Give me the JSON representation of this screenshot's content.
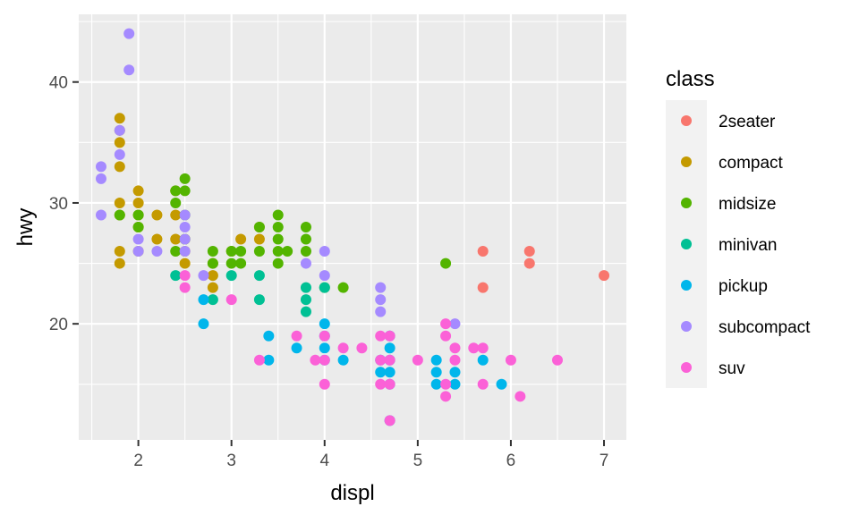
{
  "chart_data": {
    "type": "scatter",
    "xlabel": "displ",
    "ylabel": "hwy",
    "xlim": [
      1.36,
      7.24
    ],
    "ylim": [
      10.4,
      45.6
    ],
    "x_ticks": [
      2,
      3,
      4,
      5,
      6,
      7
    ],
    "y_ticks": [
      20,
      30,
      40
    ],
    "grid": true,
    "legend": {
      "title": "class",
      "position": "right"
    },
    "series": [
      {
        "name": "2seater",
        "color": "#F8766D",
        "points": [
          [
            5.7,
            26
          ],
          [
            5.7,
            23
          ],
          [
            6.2,
            26
          ],
          [
            6.2,
            25
          ],
          [
            7.0,
            24
          ]
        ]
      },
      {
        "name": "compact",
        "color": "#C49A00",
        "points": [
          [
            1.8,
            37
          ],
          [
            1.8,
            36
          ],
          [
            1.8,
            35
          ],
          [
            1.8,
            33
          ],
          [
            1.8,
            30
          ],
          [
            1.8,
            29
          ],
          [
            1.8,
            26
          ],
          [
            1.8,
            25
          ],
          [
            2.0,
            31
          ],
          [
            2.0,
            30
          ],
          [
            2.0,
            29
          ],
          [
            2.0,
            28
          ],
          [
            2.0,
            26
          ],
          [
            2.2,
            29
          ],
          [
            2.2,
            27
          ],
          [
            2.4,
            31
          ],
          [
            2.4,
            29
          ],
          [
            2.4,
            27
          ],
          [
            2.5,
            27
          ],
          [
            2.5,
            26
          ],
          [
            2.5,
            25
          ],
          [
            2.8,
            25
          ],
          [
            2.8,
            24
          ],
          [
            2.8,
            23
          ],
          [
            3.0,
            26
          ],
          [
            3.1,
            27
          ],
          [
            3.3,
            28
          ],
          [
            3.3,
            27
          ]
        ]
      },
      {
        "name": "midsize",
        "color": "#53B400",
        "points": [
          [
            1.8,
            29
          ],
          [
            2.0,
            29
          ],
          [
            2.0,
            28
          ],
          [
            2.4,
            31
          ],
          [
            2.4,
            30
          ],
          [
            2.4,
            26
          ],
          [
            2.5,
            32
          ],
          [
            2.5,
            31
          ],
          [
            2.5,
            29
          ],
          [
            2.5,
            27
          ],
          [
            2.8,
            26
          ],
          [
            2.8,
            25
          ],
          [
            3.0,
            26
          ],
          [
            3.0,
            25
          ],
          [
            3.1,
            26
          ],
          [
            3.1,
            25
          ],
          [
            3.3,
            28
          ],
          [
            3.3,
            26
          ],
          [
            3.5,
            29
          ],
          [
            3.5,
            28
          ],
          [
            3.5,
            27
          ],
          [
            3.5,
            26
          ],
          [
            3.5,
            25
          ],
          [
            3.6,
            26
          ],
          [
            3.8,
            28
          ],
          [
            3.8,
            27
          ],
          [
            3.8,
            26
          ],
          [
            4.0,
            23
          ],
          [
            4.2,
            23
          ],
          [
            5.3,
            25
          ]
        ]
      },
      {
        "name": "minivan",
        "color": "#00C094",
        "points": [
          [
            2.4,
            24
          ],
          [
            2.8,
            22
          ],
          [
            3.0,
            24
          ],
          [
            3.3,
            24
          ],
          [
            3.3,
            22
          ],
          [
            3.8,
            23
          ],
          [
            3.8,
            22
          ],
          [
            3.8,
            21
          ],
          [
            4.0,
            23
          ]
        ]
      },
      {
        "name": "pickup",
        "color": "#00B6EB",
        "points": [
          [
            2.7,
            22
          ],
          [
            2.7,
            20
          ],
          [
            3.4,
            19
          ],
          [
            3.4,
            17
          ],
          [
            3.7,
            18
          ],
          [
            4.0,
            20
          ],
          [
            4.0,
            19
          ],
          [
            4.0,
            18
          ],
          [
            4.0,
            17
          ],
          [
            4.2,
            17
          ],
          [
            4.6,
            17
          ],
          [
            4.6,
            16
          ],
          [
            4.7,
            19
          ],
          [
            4.7,
            18
          ],
          [
            4.7,
            17
          ],
          [
            4.7,
            16
          ],
          [
            4.7,
            15
          ],
          [
            4.7,
            12
          ],
          [
            5.2,
            17
          ],
          [
            5.2,
            16
          ],
          [
            5.2,
            15
          ],
          [
            5.4,
            16
          ],
          [
            5.4,
            15
          ],
          [
            5.7,
            17
          ],
          [
            5.9,
            15
          ]
        ]
      },
      {
        "name": "subcompact",
        "color": "#A58AFF",
        "points": [
          [
            1.6,
            33
          ],
          [
            1.6,
            32
          ],
          [
            1.6,
            29
          ],
          [
            1.8,
            36
          ],
          [
            1.8,
            34
          ],
          [
            1.9,
            44
          ],
          [
            1.9,
            41
          ],
          [
            2.0,
            27
          ],
          [
            2.0,
            26
          ],
          [
            2.2,
            26
          ],
          [
            2.5,
            29
          ],
          [
            2.5,
            28
          ],
          [
            2.5,
            27
          ],
          [
            2.5,
            26
          ],
          [
            2.7,
            24
          ],
          [
            3.8,
            25
          ],
          [
            4.0,
            26
          ],
          [
            4.0,
            24
          ],
          [
            4.6,
            23
          ],
          [
            4.6,
            22
          ],
          [
            4.6,
            21
          ],
          [
            5.4,
            20
          ]
        ]
      },
      {
        "name": "suv",
        "color": "#FB61D7",
        "points": [
          [
            2.5,
            24
          ],
          [
            2.5,
            23
          ],
          [
            3.0,
            22
          ],
          [
            3.3,
            17
          ],
          [
            3.7,
            19
          ],
          [
            3.9,
            17
          ],
          [
            4.0,
            19
          ],
          [
            4.0,
            17
          ],
          [
            4.0,
            15
          ],
          [
            4.2,
            18
          ],
          [
            4.4,
            18
          ],
          [
            4.6,
            19
          ],
          [
            4.6,
            17
          ],
          [
            4.6,
            15
          ],
          [
            4.7,
            19
          ],
          [
            4.7,
            17
          ],
          [
            4.7,
            15
          ],
          [
            4.7,
            12
          ],
          [
            5.0,
            17
          ],
          [
            5.3,
            20
          ],
          [
            5.3,
            19
          ],
          [
            5.3,
            15
          ],
          [
            5.3,
            14
          ],
          [
            5.4,
            18
          ],
          [
            5.4,
            17
          ],
          [
            5.6,
            18
          ],
          [
            5.7,
            18
          ],
          [
            5.7,
            15
          ],
          [
            6.0,
            17
          ],
          [
            6.1,
            14
          ],
          [
            6.5,
            17
          ]
        ]
      }
    ]
  }
}
